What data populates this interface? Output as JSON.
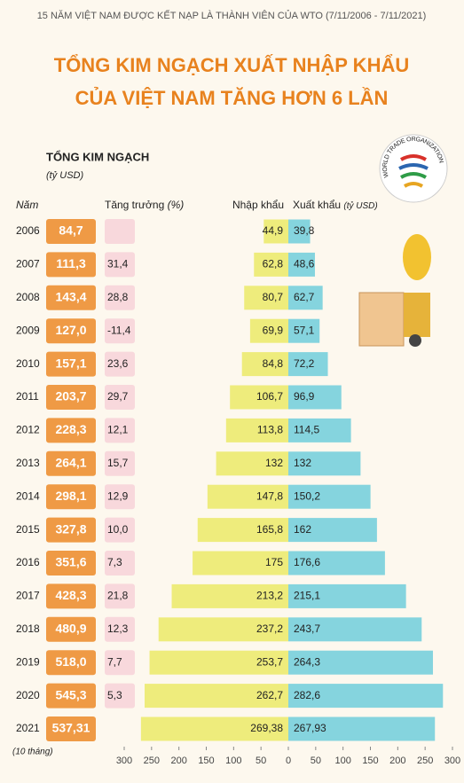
{
  "chart_data": {
    "type": "butterfly",
    "supertitle": "15 NĂM VIỆT NAM ĐƯỢC KẾT NẠP LÀ THÀNH VIÊN CỦA WTO (7/11/2006 - 7/11/2021)",
    "title": [
      "TỔNG KIM NGẠCH XUẤT NHẬP KHẨU",
      "CỦA VIỆT NAM TĂNG HƠN 6 LẦN"
    ],
    "logo_text": "WORLD TRADE ORGANIZATION",
    "category_label": "Năm",
    "categories": [
      "2006",
      "2007",
      "2008",
      "2009",
      "2010",
      "2011",
      "2012",
      "2013",
      "2014",
      "2015",
      "2016",
      "2017",
      "2018",
      "2019",
      "2020",
      "2021"
    ],
    "note": "(10 tháng)",
    "totals": {
      "name": "TỔNG KIM NGẠCH",
      "unit": "(tỷ USD)",
      "color": "#ef9a45",
      "values": [
        84.7,
        111.3,
        143.4,
        127.0,
        157.1,
        203.7,
        228.3,
        264.1,
        298.1,
        327.8,
        351.6,
        428.3,
        480.9,
        518.0,
        545.3,
        537.31
      ],
      "value_labels": [
        "84,7",
        "111,3",
        "143,4",
        "127,0",
        "157,1",
        "203,7",
        "228,3",
        "264,1",
        "298,1",
        "327,8",
        "351,6",
        "428,3",
        "480,9",
        "518,0",
        "545,3",
        "537,31"
      ]
    },
    "growth": {
      "name": "Tăng trưởng",
      "unit": "(%)",
      "color": "#f8d8dc",
      "values": [
        null,
        31.4,
        28.8,
        -11.4,
        23.6,
        29.7,
        12.1,
        15.7,
        12.9,
        10.0,
        7.3,
        21.8,
        12.3,
        7.7,
        5.3,
        null
      ],
      "value_labels": [
        null,
        "31,4",
        "28,8",
        "-11,4",
        "23,6",
        "29,7",
        "12,1",
        "15,7",
        "12,9",
        "10,0",
        "7,3",
        "21,8",
        "12,3",
        "7,7",
        "5,3",
        null
      ]
    },
    "series": [
      {
        "name": "Nhập khẩu",
        "side": "left",
        "color": "#eeec7c",
        "values": [
          44.9,
          62.8,
          80.7,
          69.9,
          84.8,
          106.7,
          113.8,
          132,
          147.8,
          165.8,
          175,
          213.2,
          237.2,
          253.7,
          262.7,
          269.38
        ],
        "value_labels": [
          "44,9",
          "62,8",
          "80,7",
          "69,9",
          "84,8",
          "106,7",
          "113,8",
          "132",
          "147,8",
          "165,8",
          "175",
          "213,2",
          "237,2",
          "253,7",
          "262,7",
          "269,38"
        ]
      },
      {
        "name": "Xuất khẩu",
        "unit": "(tỷ USD)",
        "side": "right",
        "color": "#85d4de",
        "values": [
          39.8,
          48.6,
          62.7,
          57.1,
          72.2,
          96.9,
          114.5,
          132,
          150.2,
          162,
          176.6,
          215.1,
          243.7,
          264.3,
          282.6,
          267.93
        ],
        "value_labels": [
          "39,8",
          "48,6",
          "62,7",
          "57,1",
          "72,2",
          "96,9",
          "114,5",
          "132",
          "150,2",
          "162",
          "176,6",
          "215,1",
          "243,7",
          "264,3",
          "282,6",
          "267,93"
        ]
      }
    ],
    "xlim": [
      0,
      300
    ],
    "xticks": [
      0,
      50,
      100,
      150,
      200,
      250,
      300
    ]
  }
}
